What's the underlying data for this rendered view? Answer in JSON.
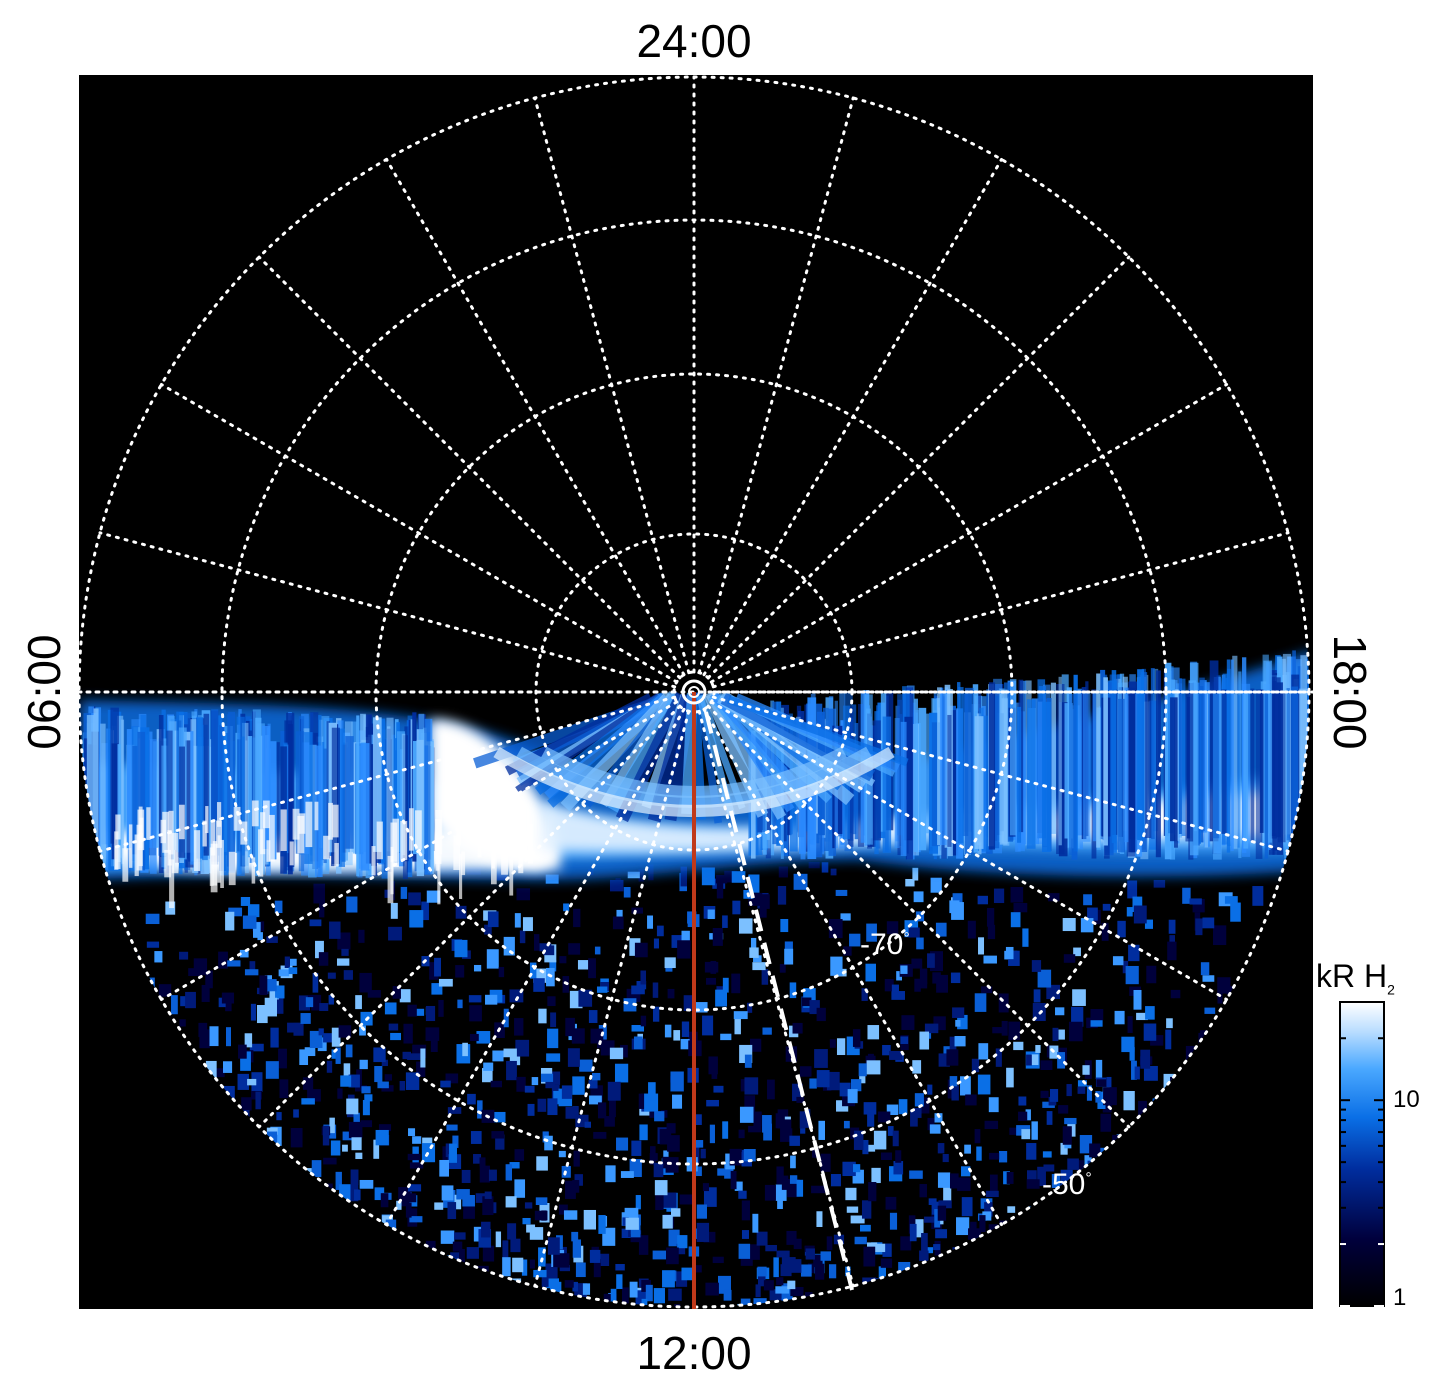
{
  "chart_data": {
    "type": "heatmap",
    "projection": "polar",
    "local_time_labels": {
      "top": "24:00",
      "right": "18:00",
      "bottom": "12:00",
      "left": "06:00"
    },
    "latitude_labels": [
      {
        "text": "-70",
        "degree": "°"
      },
      {
        "text": "-50",
        "degree": "°"
      }
    ],
    "colorbar": {
      "title": "kR H",
      "title_subscript": "2",
      "scale": "log",
      "range": [
        1,
        30
      ],
      "ticks": [
        {
          "value": 10,
          "label": "10"
        },
        {
          "value": 1,
          "label": "1"
        }
      ]
    },
    "grid": true,
    "grid_color": "#ffffff",
    "background_color": "#000000",
    "meridian_line_color": "#c0391a",
    "dashed_line_color": "#ffffff",
    "colormap": [
      "#000000",
      "#00003c",
      "#002d9e",
      "#0a6fe6",
      "#4aa8ff",
      "#b7dcff",
      "#ffffff"
    ]
  }
}
